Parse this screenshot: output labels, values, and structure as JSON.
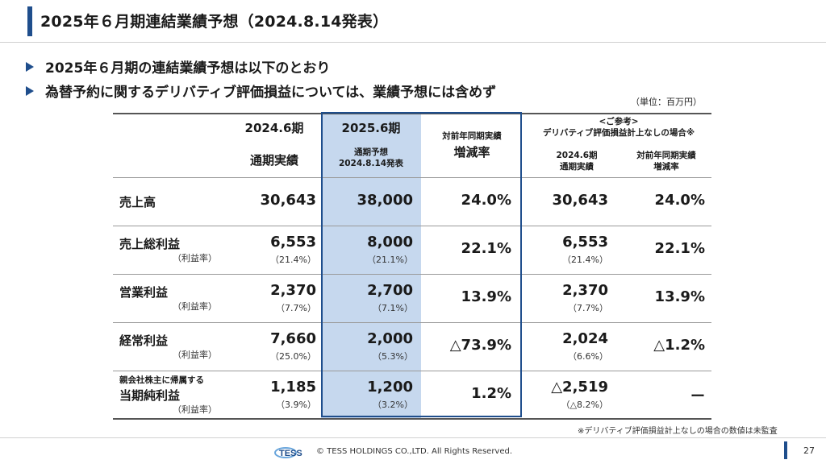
{
  "header": {
    "title": "2025年６月期連結業績予想（2024.8.14発表）"
  },
  "bullets": [
    "2025年６月期の連結業績予想は以下のとおり",
    "為替予約に関するデリバティブ評価損益については、業績予想には含めず"
  ],
  "unit": "（単位：百万円）",
  "columns": {
    "c1_top": "2024.6期",
    "c1_bottom": "通期実績",
    "c2_top": "2025.6期",
    "c2_sub1": "通期予想",
    "c2_sub2": "2024.8.14発表",
    "c3_line1": "対前年同期実績",
    "c3_line2": "増減率",
    "ref_line1": "<ご参考>",
    "ref_line2": "デリバティブ評価損益計上なしの場合※",
    "c4_line1": "2024.6期",
    "c4_line2": "通期実績",
    "c5_line1": "対前年同期実績",
    "c5_line2": "増減率"
  },
  "rows": [
    {
      "label": "売上高",
      "pre_label": "",
      "sub": "",
      "v2024": "30,643",
      "p2024": "",
      "v2025": "38,000",
      "p2025": "",
      "chg": "24.0%",
      "ref": "30,643",
      "ref_pct": "",
      "ref_chg": "24.0%"
    },
    {
      "label": "売上総利益",
      "pre_label": "",
      "sub": "（利益率）",
      "v2024": "6,553",
      "p2024": "（21.4%）",
      "v2025": "8,000",
      "p2025": "（21.1%）",
      "chg": "22.1%",
      "ref": "6,553",
      "ref_pct": "（21.4%）",
      "ref_chg": "22.1%"
    },
    {
      "label": "営業利益",
      "pre_label": "",
      "sub": "（利益率）",
      "v2024": "2,370",
      "p2024": "（7.7%）",
      "v2025": "2,700",
      "p2025": "（7.1%）",
      "chg": "13.9%",
      "ref": "2,370",
      "ref_pct": "（7.7%）",
      "ref_chg": "13.9%"
    },
    {
      "label": "経常利益",
      "pre_label": "",
      "sub": "（利益率）",
      "v2024": "7,660",
      "p2024": "（25.0%）",
      "v2025": "2,000",
      "p2025": "（5.3%）",
      "chg": "△73.9%",
      "ref": "2,024",
      "ref_pct": "（6.6%）",
      "ref_chg": "△1.2%"
    },
    {
      "label": "当期純利益",
      "pre_label": "親会社株主に帰属する",
      "sub": "（利益率）",
      "v2024": "1,185",
      "p2024": "（3.9%）",
      "v2025": "1,200",
      "p2025": "（3.2%）",
      "chg": "1.2%",
      "ref": "△2,519",
      "ref_pct": "（△8.2%）",
      "ref_chg": "ー"
    }
  ],
  "footnote": "※デリバティブ評価損益計上なしの場合の数値は未監査",
  "footer": {
    "logo_text": "TESS",
    "copyright": "© TESS HOLDINGS CO.,LTD. All Rights Reserved.",
    "page": "27"
  }
}
